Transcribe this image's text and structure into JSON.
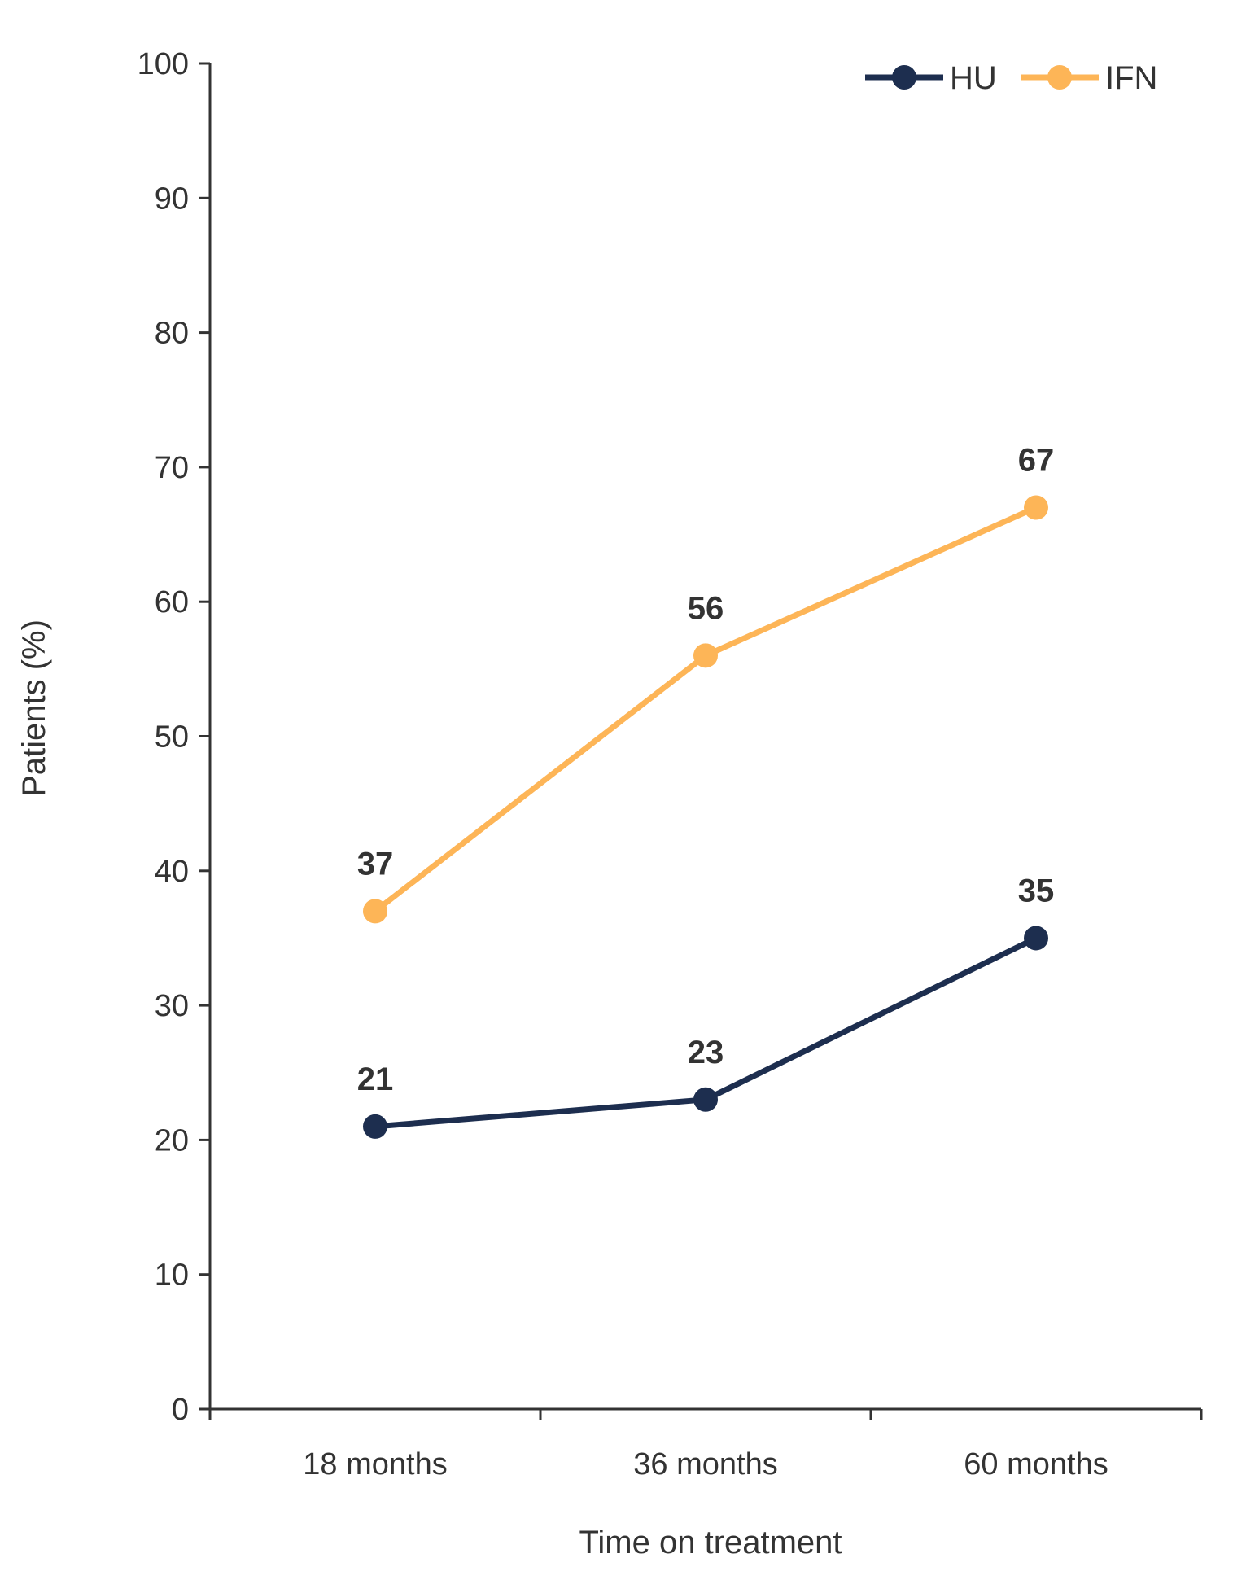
{
  "chart_data": {
    "type": "line",
    "title": "",
    "xlabel": "Time on treatment",
    "ylabel": "Patients (%)",
    "ylim": [
      0,
      100
    ],
    "yticks": [
      0,
      10,
      20,
      30,
      40,
      50,
      60,
      70,
      80,
      90,
      100
    ],
    "categories": [
      "18 months",
      "36 months",
      "60 months"
    ],
    "grid": false,
    "legend": "top-right",
    "series": [
      {
        "name": "HU",
        "color": "#1d2e4f",
        "values": [
          21,
          23,
          35
        ]
      },
      {
        "name": "IFN",
        "color": "#fdb557",
        "values": [
          37,
          56,
          67
        ]
      }
    ],
    "axis_color": "#333333"
  }
}
